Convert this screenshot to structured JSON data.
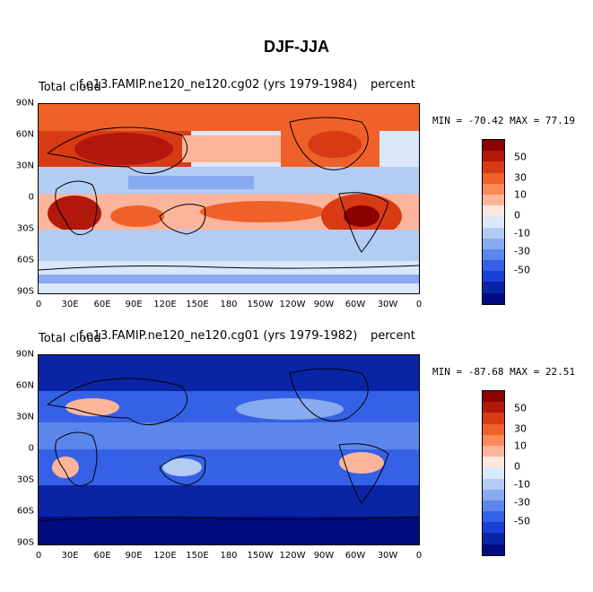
{
  "title": "DJF-JJA",
  "panels": [
    {
      "left_label": "Total cloud",
      "center_label": "f.e13.FAMIP.ne120_ne120.cg02 (yrs 1979-1984)",
      "right_label": "percent",
      "stats": "MIN = -70.42  MAX =  77.19"
    },
    {
      "left_label": "Total cloud",
      "center_label": "f.e13.FAMIP.ne120_ne120.cg01 (yrs 1979-1982)",
      "right_label": "percent",
      "stats": "MIN = -87.68  MAX =  22.51"
    }
  ],
  "lat_ticks": [
    "90N",
    "60N",
    "30N",
    "0",
    "30S",
    "60S",
    "90S"
  ],
  "lon_ticks": [
    "0",
    "30E",
    "60E",
    "90E",
    "120E",
    "150E",
    "180",
    "150W",
    "120W",
    "90W",
    "60W",
    "30W",
    "0"
  ],
  "colorbar": {
    "colors": [
      "#8b0000",
      "#b2180b",
      "#d83b14",
      "#f0612a",
      "#fb8a5a",
      "#fcb59a",
      "#fde6dc",
      "#dbe8fa",
      "#b3ccf3",
      "#88aaf0",
      "#5c86ec",
      "#3461e6",
      "#1a3fd4",
      "#0a24a6",
      "#000c80"
    ],
    "labels": [
      "50",
      "30",
      "10",
      "0",
      "-10",
      "-30",
      "-50"
    ]
  }
}
